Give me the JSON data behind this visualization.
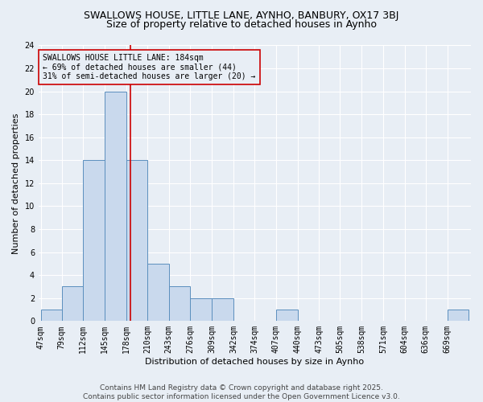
{
  "title1": "SWALLOWS HOUSE, LITTLE LANE, AYNHO, BANBURY, OX17 3BJ",
  "title2": "Size of property relative to detached houses in Aynho",
  "xlabel": "Distribution of detached houses by size in Aynho",
  "ylabel": "Number of detached properties",
  "bin_edges": [
    47,
    79,
    112,
    145,
    178,
    210,
    243,
    276,
    309,
    342,
    374,
    407,
    440,
    473,
    505,
    538,
    571,
    604,
    636,
    669,
    702
  ],
  "bin_counts": [
    1,
    3,
    14,
    20,
    14,
    5,
    3,
    2,
    2,
    0,
    0,
    1,
    0,
    0,
    0,
    0,
    0,
    0,
    0,
    1
  ],
  "bar_color": "#c9d9ed",
  "bar_edgecolor": "#5b8fbe",
  "vline_x": 184,
  "vline_color": "#cc0000",
  "annotation_line1": "SWALLOWS HOUSE LITTLE LANE: 184sqm",
  "annotation_line2": "← 69% of detached houses are smaller (44)",
  "annotation_line3": "31% of semi-detached houses are larger (20) →",
  "annotation_box_color": "#cc0000",
  "ylim": [
    0,
    24
  ],
  "yticks": [
    0,
    2,
    4,
    6,
    8,
    10,
    12,
    14,
    16,
    18,
    20,
    22,
    24
  ],
  "bg_color": "#e8eef5",
  "grid_color": "#ffffff",
  "footer_line1": "Contains HM Land Registry data © Crown copyright and database right 2025.",
  "footer_line2": "Contains public sector information licensed under the Open Government Licence v3.0.",
  "title1_fontsize": 9,
  "title2_fontsize": 9,
  "xlabel_fontsize": 8,
  "ylabel_fontsize": 8,
  "tick_fontsize": 7,
  "annotation_fontsize": 7,
  "footer_fontsize": 6.5
}
